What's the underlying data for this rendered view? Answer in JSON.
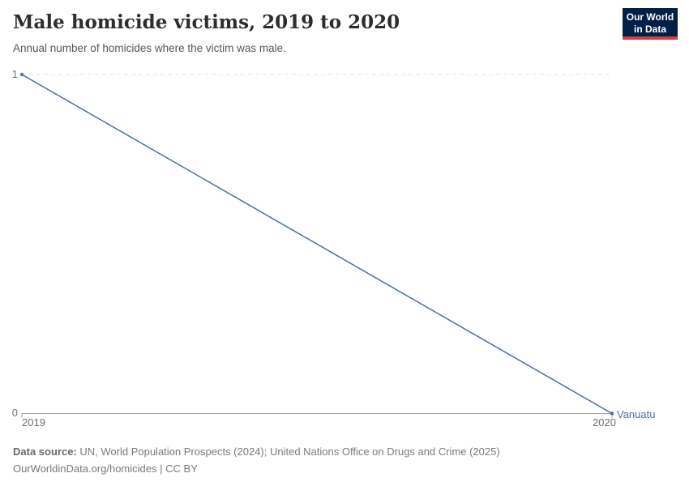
{
  "header": {
    "title": "Male homicide victims, 2019 to 2020",
    "subtitle": "Annual number of homicides where the victim was male."
  },
  "logo": {
    "line1": "Our World",
    "line2": "in Data",
    "bg_color": "#002147",
    "accent_color": "#D93D3E"
  },
  "chart_data": {
    "type": "line",
    "title": "Male homicide victims, 2019 to 2020",
    "x": [
      2019,
      2020
    ],
    "series": [
      {
        "name": "Vanuatu",
        "values": [
          1,
          0
        ],
        "color": "#4C6FA8"
      }
    ],
    "ylim": [
      0,
      1
    ],
    "yticks": [
      0,
      1
    ],
    "xlabel": "",
    "ylabel": "",
    "grid": "dashed gridline at y=1 only, solid x-axis at y=0",
    "legend": "entity label at end of line",
    "gridline_color": "#e3e3e3",
    "axis_color": "#a3a3a3",
    "tick_label_color": "#6e6e6e"
  },
  "footer": {
    "source_label": "Data source:",
    "source_text": "UN, World Population Prospects (2024); United Nations Office on Drugs and Crime (2025)",
    "url": "OurWorldinData.org/homicides",
    "separator": "|",
    "license": "CC BY"
  }
}
